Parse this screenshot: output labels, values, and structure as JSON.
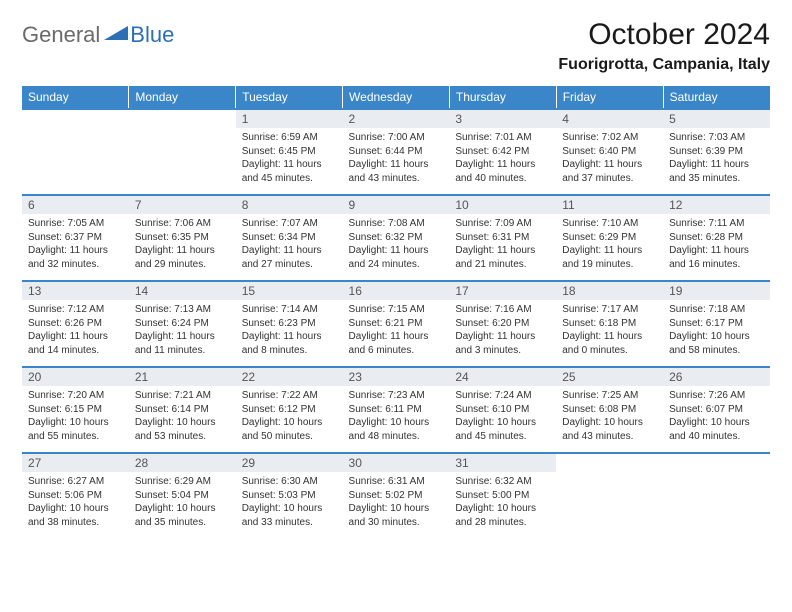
{
  "logo": {
    "general": "General",
    "blue": "Blue"
  },
  "title": "October 2024",
  "location": "Fuorigrotta, Campania, Italy",
  "colors": {
    "header_bg": "#3a86c8",
    "header_text": "#ffffff",
    "daynum_bg": "#e9edf1",
    "row_border": "#3a86c8",
    "logo_gray": "#6b6b6b",
    "logo_blue": "#2c6fb5"
  },
  "day_labels": [
    "Sunday",
    "Monday",
    "Tuesday",
    "Wednesday",
    "Thursday",
    "Friday",
    "Saturday"
  ],
  "weeks": [
    [
      null,
      null,
      {
        "n": "1",
        "sr": "6:59 AM",
        "ss": "6:45 PM",
        "dl": "11 hours and 45 minutes."
      },
      {
        "n": "2",
        "sr": "7:00 AM",
        "ss": "6:44 PM",
        "dl": "11 hours and 43 minutes."
      },
      {
        "n": "3",
        "sr": "7:01 AM",
        "ss": "6:42 PM",
        "dl": "11 hours and 40 minutes."
      },
      {
        "n": "4",
        "sr": "7:02 AM",
        "ss": "6:40 PM",
        "dl": "11 hours and 37 minutes."
      },
      {
        "n": "5",
        "sr": "7:03 AM",
        "ss": "6:39 PM",
        "dl": "11 hours and 35 minutes."
      }
    ],
    [
      {
        "n": "6",
        "sr": "7:05 AM",
        "ss": "6:37 PM",
        "dl": "11 hours and 32 minutes."
      },
      {
        "n": "7",
        "sr": "7:06 AM",
        "ss": "6:35 PM",
        "dl": "11 hours and 29 minutes."
      },
      {
        "n": "8",
        "sr": "7:07 AM",
        "ss": "6:34 PM",
        "dl": "11 hours and 27 minutes."
      },
      {
        "n": "9",
        "sr": "7:08 AM",
        "ss": "6:32 PM",
        "dl": "11 hours and 24 minutes."
      },
      {
        "n": "10",
        "sr": "7:09 AM",
        "ss": "6:31 PM",
        "dl": "11 hours and 21 minutes."
      },
      {
        "n": "11",
        "sr": "7:10 AM",
        "ss": "6:29 PM",
        "dl": "11 hours and 19 minutes."
      },
      {
        "n": "12",
        "sr": "7:11 AM",
        "ss": "6:28 PM",
        "dl": "11 hours and 16 minutes."
      }
    ],
    [
      {
        "n": "13",
        "sr": "7:12 AM",
        "ss": "6:26 PM",
        "dl": "11 hours and 14 minutes."
      },
      {
        "n": "14",
        "sr": "7:13 AM",
        "ss": "6:24 PM",
        "dl": "11 hours and 11 minutes."
      },
      {
        "n": "15",
        "sr": "7:14 AM",
        "ss": "6:23 PM",
        "dl": "11 hours and 8 minutes."
      },
      {
        "n": "16",
        "sr": "7:15 AM",
        "ss": "6:21 PM",
        "dl": "11 hours and 6 minutes."
      },
      {
        "n": "17",
        "sr": "7:16 AM",
        "ss": "6:20 PM",
        "dl": "11 hours and 3 minutes."
      },
      {
        "n": "18",
        "sr": "7:17 AM",
        "ss": "6:18 PM",
        "dl": "11 hours and 0 minutes."
      },
      {
        "n": "19",
        "sr": "7:18 AM",
        "ss": "6:17 PM",
        "dl": "10 hours and 58 minutes."
      }
    ],
    [
      {
        "n": "20",
        "sr": "7:20 AM",
        "ss": "6:15 PM",
        "dl": "10 hours and 55 minutes."
      },
      {
        "n": "21",
        "sr": "7:21 AM",
        "ss": "6:14 PM",
        "dl": "10 hours and 53 minutes."
      },
      {
        "n": "22",
        "sr": "7:22 AM",
        "ss": "6:12 PM",
        "dl": "10 hours and 50 minutes."
      },
      {
        "n": "23",
        "sr": "7:23 AM",
        "ss": "6:11 PM",
        "dl": "10 hours and 48 minutes."
      },
      {
        "n": "24",
        "sr": "7:24 AM",
        "ss": "6:10 PM",
        "dl": "10 hours and 45 minutes."
      },
      {
        "n": "25",
        "sr": "7:25 AM",
        "ss": "6:08 PM",
        "dl": "10 hours and 43 minutes."
      },
      {
        "n": "26",
        "sr": "7:26 AM",
        "ss": "6:07 PM",
        "dl": "10 hours and 40 minutes."
      }
    ],
    [
      {
        "n": "27",
        "sr": "6:27 AM",
        "ss": "5:06 PM",
        "dl": "10 hours and 38 minutes."
      },
      {
        "n": "28",
        "sr": "6:29 AM",
        "ss": "5:04 PM",
        "dl": "10 hours and 35 minutes."
      },
      {
        "n": "29",
        "sr": "6:30 AM",
        "ss": "5:03 PM",
        "dl": "10 hours and 33 minutes."
      },
      {
        "n": "30",
        "sr": "6:31 AM",
        "ss": "5:02 PM",
        "dl": "10 hours and 30 minutes."
      },
      {
        "n": "31",
        "sr": "6:32 AM",
        "ss": "5:00 PM",
        "dl": "10 hours and 28 minutes."
      },
      null,
      null
    ]
  ],
  "labels": {
    "sunrise": "Sunrise:",
    "sunset": "Sunset:",
    "daylight": "Daylight:"
  }
}
